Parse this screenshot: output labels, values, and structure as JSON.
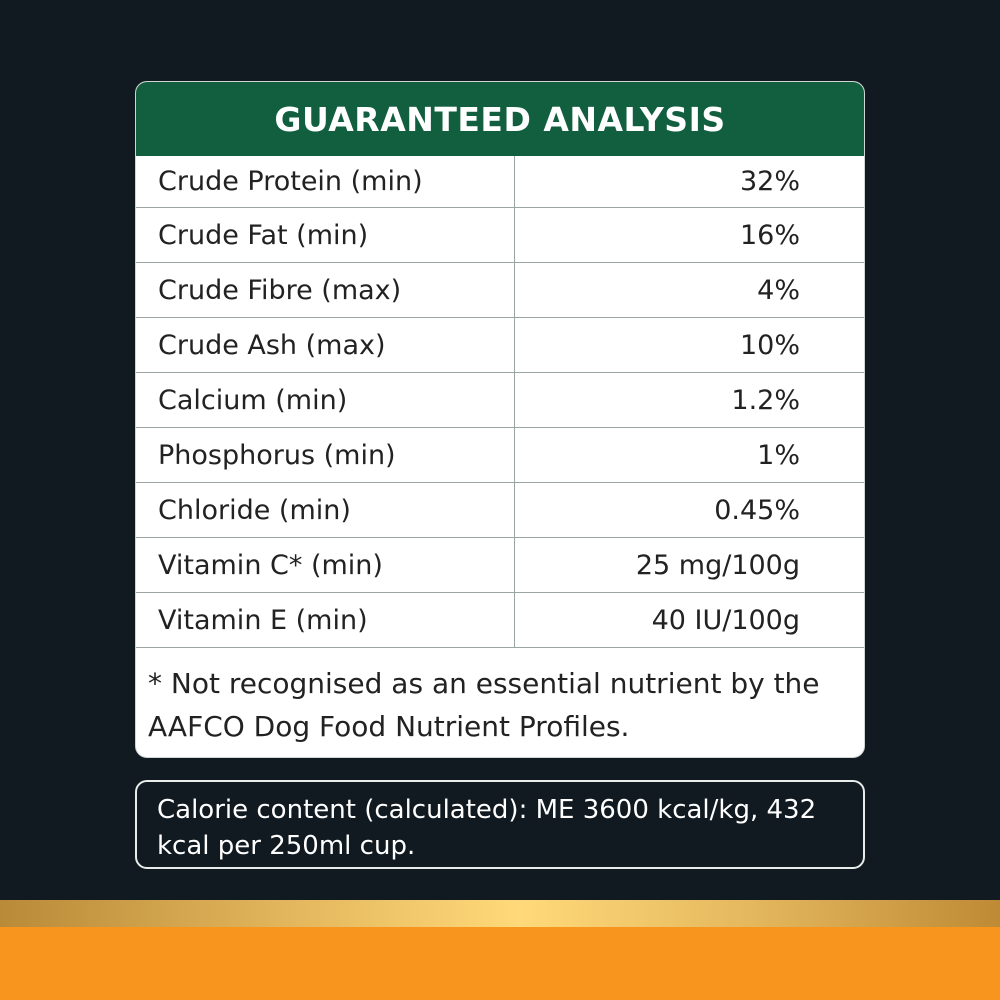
{
  "table": {
    "title": "GUARANTEED ANALYSIS",
    "rows": [
      {
        "label": "Crude Protein (min)",
        "value": "32%"
      },
      {
        "label": "Crude Fat (min)",
        "value": "16%"
      },
      {
        "label": "Crude Fibre (max)",
        "value": "4%"
      },
      {
        "label": "Crude Ash (max)",
        "value": "10%"
      },
      {
        "label": "Calcium (min)",
        "value": "1.2%"
      },
      {
        "label": "Phosphorus (min)",
        "value": "1%"
      },
      {
        "label": "Chloride (min)",
        "value": "0.45%"
      },
      {
        "label": "Vitamin C* (min)",
        "value": "25 mg/100g"
      },
      {
        "label": "Vitamin E (min)",
        "value": "40 IU/100g"
      }
    ],
    "footnote": "* Not recognised as an essential nutrient by the AAFCO Dog Food Nutrient Profiles."
  },
  "calorie": {
    "text": "Calorie content (calculated): ME 3600 kcal/kg, 432 kcal per 250ml cup."
  },
  "colors": {
    "header": "#125f40",
    "background": "#111a21",
    "band_gold": "#ffd97a",
    "band_orange": "#f7951f"
  }
}
